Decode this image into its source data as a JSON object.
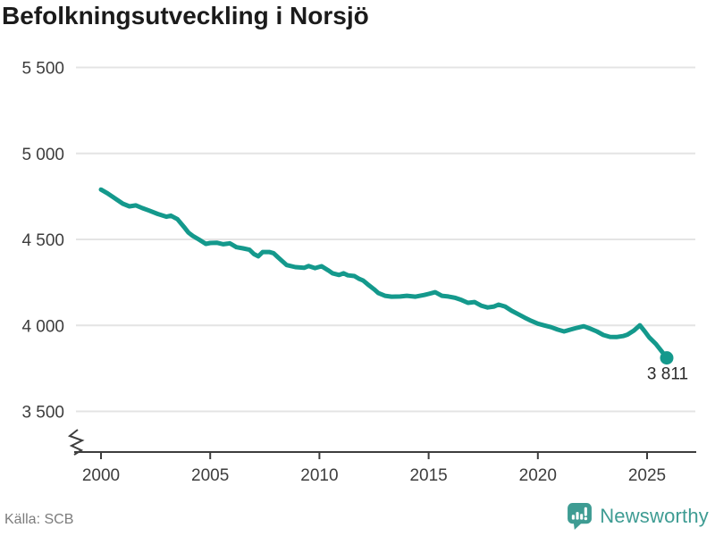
{
  "header": {
    "title": "Befolkningsutveckling i Norsjö"
  },
  "footer": {
    "source": "Källa: SCB",
    "brand": "Newsworthy"
  },
  "chart_data": {
    "type": "line",
    "title": "Befolkningsutveckling i Norsjö",
    "xlabel": "",
    "ylabel": "",
    "grid": true,
    "axis_break": true,
    "legend": "none",
    "xlim": [
      1998.8,
      2027.2
    ],
    "ylim": [
      3500,
      5500
    ],
    "yticks": [
      5500,
      5000,
      4500,
      4000,
      3500
    ],
    "ytick_labels": [
      "5 500",
      "5 000",
      "4 500",
      "4 000",
      "3 500"
    ],
    "xticks": [
      2000,
      2005,
      2010,
      2015,
      2020,
      2025
    ],
    "xtick_labels": [
      "2000",
      "2005",
      "2010",
      "2015",
      "2020",
      "2025"
    ],
    "last_value_label": "3 811",
    "last_value": 3811,
    "colors": {
      "line": "#14998c",
      "grid": "#e4e4e4",
      "axis": "#3d3d3d",
      "tick_text": "#3d3d3d",
      "brand": "#3e9c93"
    },
    "x": [
      2000.0,
      2000.3,
      2000.6,
      2001.0,
      2001.3,
      2001.6,
      2001.9,
      2002.2,
      2002.6,
      2003.0,
      2003.2,
      2003.5,
      2003.8,
      2004.0,
      2004.2,
      2004.5,
      2004.8,
      2005.0,
      2005.3,
      2005.6,
      2005.9,
      2006.2,
      2006.5,
      2006.8,
      2007.0,
      2007.2,
      2007.4,
      2007.7,
      2007.9,
      2008.1,
      2008.5,
      2008.9,
      2009.3,
      2009.5,
      2009.8,
      2010.1,
      2010.4,
      2010.6,
      2010.9,
      2011.1,
      2011.3,
      2011.6,
      2011.8,
      2012.0,
      2012.2,
      2012.5,
      2012.7,
      2013.0,
      2013.3,
      2013.7,
      2014.0,
      2014.4,
      2014.8,
      2015.0,
      2015.3,
      2015.6,
      2015.9,
      2016.2,
      2016.5,
      2016.8,
      2017.1,
      2017.4,
      2017.7,
      2018.0,
      2018.2,
      2018.5,
      2018.8,
      2019.1,
      2019.4,
      2019.7,
      2020.0,
      2020.3,
      2020.6,
      2020.9,
      2021.2,
      2021.5,
      2021.8,
      2022.1,
      2022.4,
      2022.7,
      2023.0,
      2023.3,
      2023.6,
      2023.9,
      2024.1,
      2024.4,
      2024.67,
      2024.9,
      2025.1,
      2025.4,
      2025.65,
      2025.9
    ],
    "series": [
      {
        "name": "Befolkning i Norsjö",
        "values": [
          4790,
          4768,
          4742,
          4708,
          4692,
          4698,
          4682,
          4668,
          4648,
          4632,
          4638,
          4618,
          4572,
          4540,
          4521,
          4498,
          4474,
          4479,
          4481,
          4472,
          4477,
          4455,
          4448,
          4440,
          4415,
          4402,
          4427,
          4427,
          4420,
          4396,
          4351,
          4339,
          4335,
          4345,
          4333,
          4344,
          4320,
          4303,
          4293,
          4303,
          4291,
          4287,
          4272,
          4261,
          4240,
          4210,
          4188,
          4172,
          4167,
          4168,
          4172,
          4167,
          4177,
          4183,
          4193,
          4172,
          4168,
          4161,
          4148,
          4131,
          4136,
          4115,
          4104,
          4110,
          4121,
          4110,
          4085,
          4065,
          4045,
          4026,
          4010,
          4000,
          3990,
          3976,
          3965,
          3976,
          3986,
          3995,
          3981,
          3965,
          3944,
          3933,
          3932,
          3938,
          3946,
          3970,
          4001,
          3964,
          3930,
          3892,
          3852,
          3811
        ]
      }
    ]
  }
}
